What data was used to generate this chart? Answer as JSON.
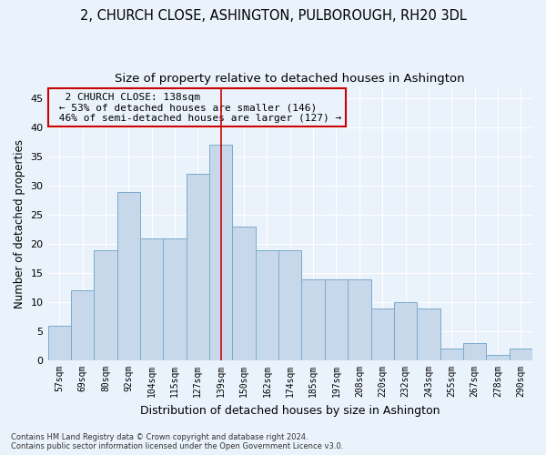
{
  "title": "2, CHURCH CLOSE, ASHINGTON, PULBOROUGH, RH20 3DL",
  "subtitle": "Size of property relative to detached houses in Ashington",
  "xlabel": "Distribution of detached houses by size in Ashington",
  "ylabel": "Number of detached properties",
  "categories": [
    "57sqm",
    "69sqm",
    "80sqm",
    "92sqm",
    "104sqm",
    "115sqm",
    "127sqm",
    "139sqm",
    "150sqm",
    "162sqm",
    "174sqm",
    "185sqm",
    "197sqm",
    "208sqm",
    "220sqm",
    "232sqm",
    "243sqm",
    "255sqm",
    "267sqm",
    "278sqm",
    "290sqm"
  ],
  "values": [
    6,
    12,
    19,
    29,
    21,
    21,
    32,
    37,
    23,
    19,
    19,
    14,
    14,
    14,
    9,
    10,
    9,
    2,
    3,
    1,
    2
  ],
  "bar_color": "#C8D8EB",
  "bar_edge_color": "#7BAACB",
  "highlight_index": 7,
  "highlight_line_color": "#CC0000",
  "annotation_text": "  2 CHURCH CLOSE: 138sqm  \n ← 53% of detached houses are smaller (146)\n 46% of semi-detached houses are larger (127) →",
  "annotation_box_color": "#CC0000",
  "footnote1": "Contains HM Land Registry data © Crown copyright and database right 2024.",
  "footnote2": "Contains public sector information licensed under the Open Government Licence v3.0.",
  "ylim": [
    0,
    47
  ],
  "yticks": [
    0,
    5,
    10,
    15,
    20,
    25,
    30,
    35,
    40,
    45
  ],
  "bg_color": "#EAF2FB",
  "grid_color": "#FFFFFF",
  "title_fontsize": 10.5,
  "subtitle_fontsize": 9.5
}
